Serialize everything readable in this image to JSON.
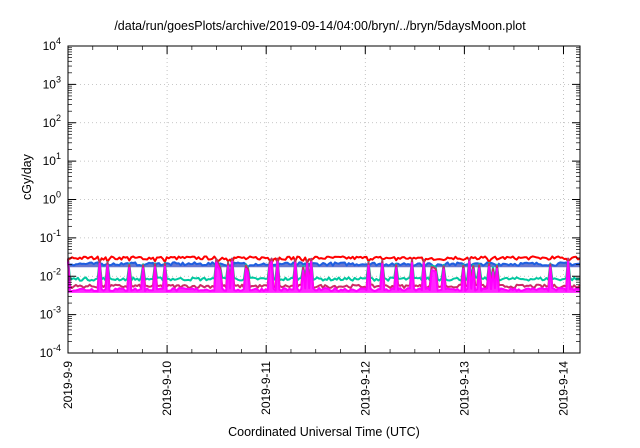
{
  "chart_data": {
    "type": "line",
    "title": "/data/run/goesPlots/archive/2019-09-14/04:00/bryn/../bryn/5daysMoon.plot",
    "xlabel": "Coordinated Universal Time (UTC)",
    "ylabel": "cGy/day",
    "y_scale": "log",
    "ylim_exponents": [
      -4,
      4
    ],
    "y_tick_labels": [
      {
        "base": "10",
        "exp": "4"
      },
      {
        "base": "10",
        "exp": "3"
      },
      {
        "base": "10",
        "exp": "2"
      },
      {
        "base": "10",
        "exp": "1"
      },
      {
        "base": "10",
        "exp": "0"
      },
      {
        "base": "10",
        "exp": "-1"
      },
      {
        "base": "10",
        "exp": "-2"
      },
      {
        "base": "10",
        "exp": "-3"
      },
      {
        "base": "10",
        "exp": "-4"
      }
    ],
    "x_tick_labels": [
      "2019-9-9",
      "2019-9-10",
      "2019-9-11",
      "2019-9-12",
      "2019-9-13",
      "2019-9-14"
    ],
    "xlim": [
      "2019-09-09T00:00",
      "2019-09-14T04:00"
    ],
    "grid": true,
    "series": [
      {
        "color": "#ff0000",
        "baseline": 0.03,
        "dip_depth": 0.3
      },
      {
        "color": "#1f5fe0",
        "baseline": 0.021,
        "dip_depth": 0.2,
        "filled": true,
        "fill_color": "#4a5fc8"
      },
      {
        "color": "#00c8a0",
        "baseline": 0.0085,
        "spike_to": 0.03
      },
      {
        "color": "#cc2a66",
        "baseline": 0.0055,
        "spike_to": 0.03
      },
      {
        "color": "#ff00ff",
        "baseline": 0.0045,
        "spike_to": 0.025,
        "filled": true,
        "fill_color": "#ff00ff"
      }
    ]
  }
}
